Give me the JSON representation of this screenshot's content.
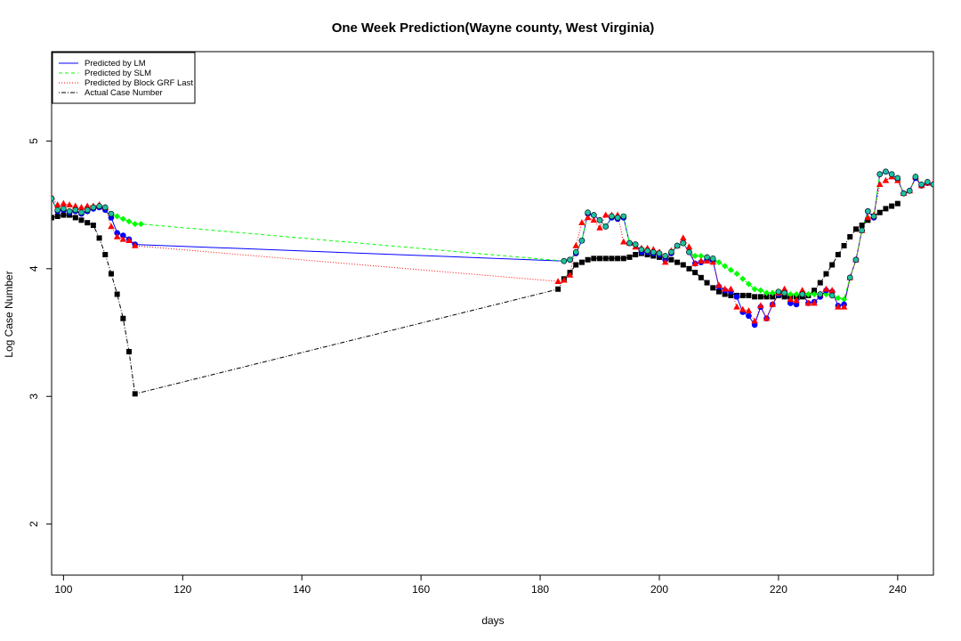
{
  "chart_data": {
    "type": "line",
    "title": "One Week Prediction(Wayne county, West Virginia)",
    "xlabel": "days",
    "ylabel": "Log Case Number",
    "xlim": [
      98,
      246
    ],
    "ylim": [
      1.6,
      5.7
    ],
    "xticks": [
      100,
      120,
      140,
      160,
      180,
      200,
      220,
      240
    ],
    "yticks": [
      2,
      3,
      4,
      5
    ],
    "legend_position": "top-left",
    "grid": false,
    "colors": {
      "lm": "#0000ff",
      "slm": "#00ff00",
      "grf": "#ff0000",
      "actual": "#000000",
      "slm_marker": "#20c0a0"
    },
    "legend": [
      {
        "label": "Predicted by LM",
        "color": "#0000ff",
        "dash": "solid"
      },
      {
        "label": "Predicted by SLM",
        "color": "#00ff00",
        "dash": "dashed"
      },
      {
        "label": "Predicted by Block GRF Last",
        "color": "#ff0000",
        "dash": "dotted"
      },
      {
        "label": "Actual Case Number",
        "color": "#000000",
        "dash": "dashdot"
      }
    ],
    "series": [
      {
        "name": "Predicted by LM",
        "x": [
          98,
          99,
          100,
          101,
          102,
          103,
          104,
          105,
          106,
          107,
          108,
          109,
          110,
          111,
          112,
          184,
          185,
          186,
          187,
          188,
          189,
          190,
          191,
          192,
          193,
          194,
          195,
          196,
          197,
          198,
          199,
          200,
          201,
          202,
          203,
          204,
          205,
          206,
          207,
          208,
          209,
          210,
          211,
          212,
          213,
          214,
          215,
          216,
          217,
          218,
          219,
          220,
          221,
          222,
          223,
          224,
          225,
          226,
          227,
          228,
          229,
          230,
          231,
          232,
          233,
          234,
          235,
          236,
          237,
          238,
          239,
          240,
          241,
          242,
          243,
          244,
          245,
          246
        ],
        "y": [
          4.55,
          4.45,
          4.46,
          4.44,
          4.45,
          4.43,
          4.45,
          4.47,
          4.48,
          4.46,
          4.4,
          4.28,
          4.26,
          4.23,
          4.19,
          4.06,
          4.07,
          4.12,
          4.22,
          4.43,
          4.42,
          4.38,
          4.33,
          4.4,
          4.39,
          4.4,
          4.2,
          4.19,
          4.13,
          4.13,
          4.12,
          4.11,
          4.07,
          4.12,
          4.18,
          4.2,
          4.13,
          4.04,
          4.05,
          4.07,
          4.06,
          3.86,
          3.83,
          3.82,
          3.78,
          3.66,
          3.63,
          3.56,
          3.7,
          3.61,
          3.72,
          3.8,
          3.82,
          3.73,
          3.72,
          3.8,
          3.73,
          3.74,
          3.78,
          3.83,
          3.82,
          3.71,
          3.72,
          3.93,
          4.07,
          4.3,
          4.45,
          4.4,
          4.74,
          4.76,
          4.74,
          4.7,
          4.59,
          4.61,
          4.71,
          4.65,
          4.67,
          4.66
        ]
      },
      {
        "name": "Predicted by SLM",
        "x": [
          98,
          99,
          100,
          101,
          102,
          103,
          104,
          105,
          106,
          107,
          108,
          109,
          110,
          111,
          112,
          113,
          184,
          185,
          186,
          187,
          188,
          189,
          190,
          191,
          192,
          193,
          194,
          195,
          196,
          197,
          198,
          199,
          200,
          201,
          202,
          203,
          204,
          205,
          206,
          207,
          208,
          209,
          210,
          211,
          212,
          213,
          214,
          215,
          216,
          217,
          218,
          219,
          220,
          221,
          222,
          223,
          224,
          225,
          226,
          227,
          228,
          229,
          230,
          231,
          232,
          233,
          234,
          235,
          236,
          237,
          238,
          239,
          240,
          241,
          242,
          243,
          244,
          245,
          246
        ],
        "y": [
          4.55,
          4.46,
          4.47,
          4.45,
          4.46,
          4.44,
          4.46,
          4.48,
          4.49,
          4.48,
          4.43,
          4.41,
          4.39,
          4.37,
          4.35,
          4.35,
          4.06,
          4.07,
          4.13,
          4.22,
          4.44,
          4.42,
          4.38,
          4.33,
          4.41,
          4.4,
          4.41,
          4.2,
          4.19,
          4.15,
          4.14,
          4.13,
          4.12,
          4.1,
          4.13,
          4.18,
          4.2,
          4.13,
          4.1,
          4.1,
          4.09,
          4.08,
          4.05,
          4.02,
          3.99,
          3.96,
          3.92,
          3.88,
          3.84,
          3.83,
          3.81,
          3.81,
          3.82,
          3.81,
          3.8,
          3.8,
          3.8,
          3.8,
          3.8,
          3.8,
          3.8,
          3.79,
          3.77,
          3.76,
          3.93,
          4.07,
          4.3,
          4.45,
          4.41,
          4.74,
          4.76,
          4.74,
          4.71,
          4.59,
          4.61,
          4.72,
          4.66,
          4.68,
          4.66
        ]
      },
      {
        "name": "Predicted by Block GRF Last",
        "x": [
          98,
          99,
          100,
          101,
          102,
          103,
          104,
          105,
          106,
          107,
          108,
          109,
          110,
          111,
          112,
          183,
          184,
          185,
          186,
          187,
          188,
          189,
          190,
          191,
          192,
          193,
          194,
          195,
          196,
          197,
          198,
          199,
          200,
          201,
          202,
          203,
          204,
          205,
          206,
          207,
          208,
          209,
          210,
          211,
          212,
          213,
          214,
          215,
          216,
          217,
          218,
          219,
          220,
          221,
          222,
          223,
          224,
          225,
          226,
          227,
          228,
          229,
          230,
          231,
          232,
          233,
          234,
          235,
          236,
          237,
          238,
          239,
          240,
          241,
          242,
          243,
          244,
          245,
          246
        ],
        "y": [
          4.56,
          4.5,
          4.51,
          4.5,
          4.49,
          4.48,
          4.49,
          4.49,
          4.5,
          4.48,
          4.33,
          4.25,
          4.23,
          4.22,
          4.18,
          3.9,
          3.91,
          3.95,
          4.18,
          4.36,
          4.4,
          4.38,
          4.32,
          4.42,
          4.42,
          4.42,
          4.21,
          4.2,
          4.17,
          4.16,
          4.16,
          4.15,
          4.13,
          4.05,
          4.14,
          4.18,
          4.24,
          4.17,
          4.04,
          4.06,
          4.06,
          4.05,
          3.87,
          3.84,
          3.84,
          3.7,
          3.68,
          3.67,
          3.59,
          3.71,
          3.61,
          3.72,
          3.81,
          3.84,
          3.76,
          3.75,
          3.83,
          3.73,
          3.73,
          3.8,
          3.84,
          3.83,
          3.7,
          3.7,
          3.93,
          4.07,
          4.3,
          4.4,
          4.42,
          4.66,
          4.69,
          4.72,
          4.69,
          4.59,
          4.61,
          4.72,
          4.65,
          4.67,
          4.67
        ]
      },
      {
        "name": "Actual Case Number",
        "x": [
          98,
          99,
          100,
          101,
          102,
          103,
          104,
          105,
          106,
          107,
          108,
          109,
          110,
          111,
          112,
          183,
          184,
          185,
          186,
          187,
          188,
          189,
          190,
          191,
          192,
          193,
          194,
          195,
          196,
          197,
          198,
          199,
          200,
          201,
          202,
          203,
          204,
          205,
          206,
          207,
          208,
          209,
          210,
          211,
          212,
          213,
          214,
          215,
          216,
          217,
          218,
          219,
          220,
          221,
          222,
          223,
          224,
          225,
          226,
          227,
          228,
          229,
          230,
          231,
          232,
          233,
          234,
          235,
          236,
          237,
          238,
          239,
          240
        ],
        "y": [
          4.4,
          4.41,
          4.42,
          4.42,
          4.4,
          4.38,
          4.36,
          4.34,
          4.24,
          4.11,
          3.96,
          3.8,
          3.61,
          3.35,
          3.02,
          3.84,
          3.92,
          3.97,
          4.03,
          4.05,
          4.07,
          4.08,
          4.08,
          4.08,
          4.08,
          4.08,
          4.08,
          4.09,
          4.11,
          4.12,
          4.11,
          4.1,
          4.09,
          4.08,
          4.07,
          4.05,
          4.03,
          4.0,
          3.97,
          3.93,
          3.89,
          3.85,
          3.82,
          3.8,
          3.79,
          3.79,
          3.79,
          3.79,
          3.78,
          3.78,
          3.78,
          3.78,
          3.79,
          3.78,
          3.78,
          3.78,
          3.78,
          3.79,
          3.83,
          3.89,
          3.96,
          4.03,
          4.11,
          4.18,
          4.25,
          4.31,
          4.34,
          4.38,
          4.41,
          4.44,
          4.47,
          4.49,
          4.51
        ]
      }
    ]
  }
}
